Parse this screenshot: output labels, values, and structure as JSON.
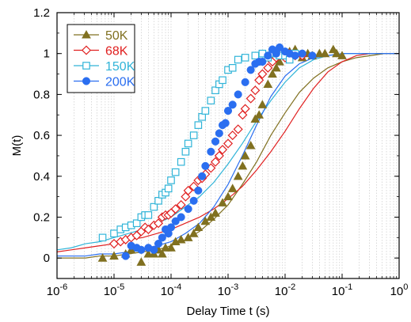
{
  "chart_data": {
    "type": "scatter",
    "xlabel": "Delay Time t (s)",
    "ylabel": "M(t)",
    "xscale": "log",
    "xlim": [
      1e-06,
      1
    ],
    "ylim": [
      -0.1,
      1.2
    ],
    "x_ticks": [
      1e-06,
      1e-05,
      0.0001,
      0.001,
      0.01,
      0.1,
      1
    ],
    "x_tick_labels": [
      {
        "base": "10",
        "exp": "-6"
      },
      {
        "base": "10",
        "exp": "-5"
      },
      {
        "base": "10",
        "exp": "-4"
      },
      {
        "base": "10",
        "exp": "-3"
      },
      {
        "base": "10",
        "exp": "-2"
      },
      {
        "base": "10",
        "exp": "-1"
      },
      {
        "base": "10",
        "exp": "0"
      }
    ],
    "y_ticks": [
      0,
      0.2,
      0.4,
      0.6,
      0.8,
      1.0,
      1.2
    ],
    "y_tick_labels": [
      "0",
      "0.2",
      "0.4",
      "0.6",
      "0.8",
      "1",
      "1.2"
    ],
    "grid": "vertical minor log gridlines (dotted)",
    "legend_position": "top-left",
    "series": [
      {
        "name": "50K",
        "color": "#807020",
        "marker": "triangle-filled",
        "points": [
          [
            6.3e-06,
            0.0
          ],
          [
            1e-05,
            0.01
          ],
          [
            1.6e-05,
            0.02
          ],
          [
            2e-05,
            0.04
          ],
          [
            3e-05,
            -0.02
          ],
          [
            4e-05,
            0.02
          ],
          [
            5e-05,
            0.02
          ],
          [
            6e-05,
            0.04
          ],
          [
            7e-05,
            0.02
          ],
          [
            8e-05,
            0.05
          ],
          [
            0.0001,
            0.05
          ],
          [
            0.00012,
            0.08
          ],
          [
            0.00015,
            0.09
          ],
          [
            0.0002,
            0.1
          ],
          [
            0.00025,
            0.12
          ],
          [
            0.0003,
            0.15
          ],
          [
            0.0004,
            0.18
          ],
          [
            0.0005,
            0.2
          ],
          [
            0.0006,
            0.22
          ],
          [
            0.0008,
            0.27
          ],
          [
            0.001,
            0.3
          ],
          [
            0.0012,
            0.34
          ],
          [
            0.0015,
            0.4
          ],
          [
            0.0018,
            0.45
          ],
          [
            0.002,
            0.5
          ],
          [
            0.0025,
            0.55
          ],
          [
            0.003,
            0.68
          ],
          [
            0.0035,
            0.7
          ],
          [
            0.004,
            0.75
          ],
          [
            0.005,
            0.85
          ],
          [
            0.006,
            0.9
          ],
          [
            0.007,
            0.93
          ],
          [
            0.008,
            0.96
          ],
          [
            0.01,
            1.0
          ],
          [
            0.012,
            1.01
          ],
          [
            0.015,
            1.02
          ],
          [
            0.02,
            0.98
          ],
          [
            0.025,
            1.0
          ],
          [
            0.03,
            0.99
          ],
          [
            0.04,
            1.0
          ],
          [
            0.05,
            1.0
          ],
          [
            0.07,
            1.02
          ],
          [
            0.08,
            1.0
          ],
          [
            0.1,
            0.99
          ]
        ],
        "fit": [
          0.0,
          0.0,
          0.0,
          0.01,
          0.01,
          0.02,
          0.03,
          0.04,
          0.06,
          0.09,
          0.13,
          0.19,
          0.26,
          0.36,
          0.47,
          0.6,
          0.71,
          0.81,
          0.88,
          0.93,
          0.96,
          0.98,
          0.99,
          1.0,
          1.0
        ]
      },
      {
        "name": "68K",
        "color": "#e02020",
        "marker": "diamond-open",
        "points": [
          [
            1e-05,
            0.07
          ],
          [
            1.3e-05,
            0.08
          ],
          [
            1.6e-05,
            0.09
          ],
          [
            2e-05,
            0.1
          ],
          [
            2.5e-05,
            0.11
          ],
          [
            3e-05,
            0.13
          ],
          [
            3.5e-05,
            0.15
          ],
          [
            4e-05,
            0.14
          ],
          [
            5e-05,
            0.16
          ],
          [
            6e-05,
            0.17
          ],
          [
            7e-05,
            0.2
          ],
          [
            8e-05,
            0.21
          ],
          [
            9e-05,
            0.21
          ],
          [
            0.0001,
            0.22
          ],
          [
            0.00012,
            0.24
          ],
          [
            0.00015,
            0.26
          ],
          [
            0.00018,
            0.3
          ],
          [
            0.0002,
            0.33
          ],
          [
            0.00025,
            0.35
          ],
          [
            0.0003,
            0.38
          ],
          [
            0.00035,
            0.39
          ],
          [
            0.0004,
            0.41
          ],
          [
            0.0005,
            0.44
          ],
          [
            0.0006,
            0.47
          ],
          [
            0.0007,
            0.5
          ],
          [
            0.0008,
            0.53
          ],
          [
            0.001,
            0.56
          ],
          [
            0.0012,
            0.6
          ],
          [
            0.0015,
            0.63
          ],
          [
            0.0018,
            0.7
          ],
          [
            0.002,
            0.73
          ],
          [
            0.0025,
            0.78
          ],
          [
            0.003,
            0.82
          ],
          [
            0.0035,
            0.87
          ],
          [
            0.004,
            0.9
          ],
          [
            0.005,
            0.93
          ],
          [
            0.006,
            0.96
          ],
          [
            0.007,
            0.98
          ],
          [
            0.008,
            0.99
          ],
          [
            0.01,
            0.98
          ],
          [
            0.012,
            1.0
          ],
          [
            0.015,
            0.99
          ],
          [
            0.02,
            0.99
          ]
        ],
        "fit": [
          0.03,
          0.04,
          0.05,
          0.06,
          0.07,
          0.09,
          0.1,
          0.12,
          0.14,
          0.17,
          0.2,
          0.24,
          0.29,
          0.35,
          0.43,
          0.52,
          0.62,
          0.73,
          0.83,
          0.91,
          0.96,
          0.99,
          1.0,
          1.0,
          1.0
        ]
      },
      {
        "name": "150K",
        "color": "#30b4d8",
        "marker": "square-open",
        "points": [
          [
            6.3e-06,
            0.1
          ],
          [
            1e-05,
            0.12
          ],
          [
            1.3e-05,
            0.14
          ],
          [
            1.6e-05,
            0.15
          ],
          [
            2e-05,
            0.16
          ],
          [
            2.5e-05,
            0.17
          ],
          [
            3e-05,
            0.2
          ],
          [
            3.5e-05,
            0.21
          ],
          [
            4e-05,
            0.21
          ],
          [
            5e-05,
            0.25
          ],
          [
            6e-05,
            0.28
          ],
          [
            7e-05,
            0.31
          ],
          [
            8e-05,
            0.32
          ],
          [
            9e-05,
            0.34
          ],
          [
            0.0001,
            0.38
          ],
          [
            0.00012,
            0.42
          ],
          [
            0.00015,
            0.47
          ],
          [
            0.00018,
            0.52
          ],
          [
            0.0002,
            0.56
          ],
          [
            0.00025,
            0.6
          ],
          [
            0.0003,
            0.65
          ],
          [
            0.00035,
            0.69
          ],
          [
            0.0004,
            0.72
          ],
          [
            0.0005,
            0.77
          ],
          [
            0.0006,
            0.82
          ],
          [
            0.0007,
            0.85
          ],
          [
            0.0008,
            0.87
          ],
          [
            0.001,
            0.92
          ],
          [
            0.0012,
            0.93
          ],
          [
            0.0015,
            0.97
          ],
          [
            0.002,
            0.98
          ],
          [
            0.003,
            0.99
          ],
          [
            0.004,
            1.0
          ],
          [
            0.005,
            0.98
          ],
          [
            0.006,
            1.0
          ],
          [
            0.007,
            1.0
          ],
          [
            0.008,
            0.99
          ],
          [
            0.01,
            0.99
          ],
          [
            0.012,
            0.97
          ],
          [
            0.015,
            1.0
          ]
        ],
        "fit": [
          0.04,
          0.05,
          0.07,
          0.08,
          0.1,
          0.12,
          0.14,
          0.17,
          0.2,
          0.25,
          0.3,
          0.37,
          0.46,
          0.56,
          0.67,
          0.77,
          0.86,
          0.93,
          0.97,
          0.99,
          1.0,
          1.0,
          1.0,
          1.0,
          1.0
        ]
      },
      {
        "name": "200K",
        "color": "#2a6ef0",
        "marker": "circle-filled",
        "points": [
          [
            1.6e-05,
            0.01
          ],
          [
            2e-05,
            0.06
          ],
          [
            2.5e-05,
            0.05
          ],
          [
            3e-05,
            0.04
          ],
          [
            4e-05,
            0.05
          ],
          [
            5e-05,
            0.04
          ],
          [
            6e-05,
            0.07
          ],
          [
            7e-05,
            0.1
          ],
          [
            8e-05,
            0.14
          ],
          [
            9e-05,
            0.12
          ],
          [
            0.0001,
            0.15
          ],
          [
            0.00012,
            0.18
          ],
          [
            0.00015,
            0.2
          ],
          [
            0.0002,
            0.24
          ],
          [
            0.00025,
            0.28
          ],
          [
            0.0003,
            0.33
          ],
          [
            0.00035,
            0.4
          ],
          [
            0.0004,
            0.45
          ],
          [
            0.0005,
            0.52
          ],
          [
            0.0006,
            0.57
          ],
          [
            0.0007,
            0.61
          ],
          [
            0.0008,
            0.65
          ],
          [
            0.0009,
            0.66
          ],
          [
            0.001,
            0.72
          ],
          [
            0.0012,
            0.75
          ],
          [
            0.0015,
            0.8
          ],
          [
            0.002,
            0.86
          ],
          [
            0.0025,
            0.92
          ],
          [
            0.003,
            0.95
          ],
          [
            0.0035,
            0.96
          ],
          [
            0.004,
            0.96
          ],
          [
            0.005,
            0.99
          ],
          [
            0.006,
            1.02
          ],
          [
            0.007,
            1.0
          ],
          [
            0.008,
            1.03
          ],
          [
            0.01,
            1.01
          ],
          [
            0.012,
            1.0
          ],
          [
            0.015,
            0.99
          ],
          [
            0.02,
            1.0
          ],
          [
            0.03,
            0.99
          ]
        ],
        "fit": [
          0.01,
          0.01,
          0.01,
          0.02,
          0.02,
          0.03,
          0.04,
          0.06,
          0.08,
          0.12,
          0.17,
          0.25,
          0.36,
          0.5,
          0.65,
          0.79,
          0.89,
          0.95,
          0.98,
          0.99,
          1.0,
          1.0,
          1.0,
          1.0,
          1.0
        ]
      }
    ]
  }
}
